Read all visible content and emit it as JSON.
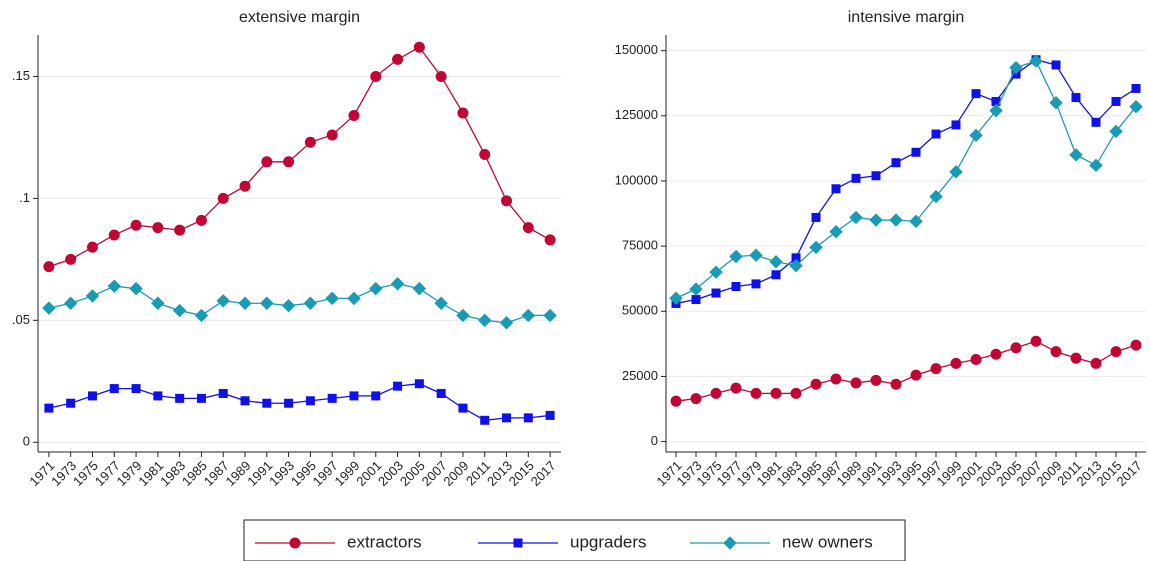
{
  "chart_data": [
    {
      "type": "line",
      "title": "extensive margin",
      "x": [
        1971,
        1973,
        1975,
        1977,
        1979,
        1981,
        1983,
        1985,
        1987,
        1989,
        1991,
        1993,
        1995,
        1997,
        1999,
        2001,
        2003,
        2005,
        2007,
        2009,
        2011,
        2013,
        2015,
        2017
      ],
      "xlim": [
        1970,
        2018
      ],
      "xticks": [
        1971,
        1973,
        1975,
        1977,
        1979,
        1981,
        1983,
        1985,
        1987,
        1989,
        1991,
        1993,
        1995,
        1997,
        1999,
        2001,
        2003,
        2005,
        2007,
        2009,
        2011,
        2013,
        2015,
        2017
      ],
      "ylim": [
        -0.004,
        0.167
      ],
      "yticks": [
        0,
        {
          "value": 0.05,
          "label": ".05"
        },
        {
          "value": 0.1,
          "label": ".1"
        },
        {
          "value": 0.15,
          "label": ".15"
        }
      ],
      "grid": true,
      "series": [
        {
          "color": "#c10534",
          "marker": "circle",
          "values": [
            0.072,
            0.075,
            0.08,
            0.085,
            0.089,
            0.088,
            0.087,
            0.091,
            0.1,
            0.105,
            0.115,
            0.115,
            0.123,
            0.126,
            0.134,
            0.15,
            0.157,
            0.162,
            0.15,
            0.135,
            0.118,
            0.099,
            0.088,
            0.083
          ]
        },
        {
          "color": "#1010e8",
          "marker": "square",
          "values": [
            0.014,
            0.016,
            0.019,
            0.022,
            0.022,
            0.019,
            0.018,
            0.018,
            0.02,
            0.017,
            0.016,
            0.016,
            0.017,
            0.018,
            0.019,
            0.019,
            0.023,
            0.024,
            0.02,
            0.014,
            0.009,
            0.01,
            0.01,
            0.011
          ]
        },
        {
          "color": "#1a9bb5",
          "marker": "diamond",
          "values": [
            0.055,
            0.057,
            0.06,
            0.064,
            0.063,
            0.057,
            0.054,
            0.052,
            0.058,
            0.057,
            0.057,
            0.056,
            0.057,
            0.059,
            0.059,
            0.063,
            0.065,
            0.063,
            0.057,
            0.052,
            0.05,
            0.049,
            0.052,
            0.052
          ]
        }
      ]
    },
    {
      "type": "line",
      "title": "intensive margin",
      "x": [
        1971,
        1973,
        1975,
        1977,
        1979,
        1981,
        1983,
        1985,
        1987,
        1989,
        1991,
        1993,
        1995,
        1997,
        1999,
        2001,
        2003,
        2005,
        2007,
        2009,
        2011,
        2013,
        2015,
        2017
      ],
      "xlim": [
        1970,
        2018
      ],
      "xticks": [
        1971,
        1973,
        1975,
        1977,
        1979,
        1981,
        1983,
        1985,
        1987,
        1989,
        1991,
        1993,
        1995,
        1997,
        1999,
        2001,
        2003,
        2005,
        2007,
        2009,
        2011,
        2013,
        2015,
        2017
      ],
      "ylim": [
        -4000,
        156000
      ],
      "yticks": [
        0,
        25000,
        50000,
        75000,
        100000,
        125000,
        150000
      ],
      "grid": true,
      "series": [
        {
          "color": "#c10534",
          "marker": "circle",
          "values": [
            15500,
            16500,
            18500,
            20500,
            18500,
            18500,
            18500,
            22000,
            24000,
            22500,
            23500,
            22000,
            25500,
            28000,
            30000,
            31500,
            33500,
            36000,
            38500,
            34500,
            32000,
            30000,
            34500,
            37000
          ]
        },
        {
          "color": "#1010e8",
          "marker": "square",
          "values": [
            53000,
            54500,
            57000,
            59500,
            60500,
            64000,
            70500,
            86000,
            97000,
            101000,
            102000,
            107000,
            111000,
            118000,
            121500,
            133500,
            130500,
            141000,
            146500,
            144500,
            132000,
            122500,
            130500,
            135500
          ]
        },
        {
          "color": "#1a9bb5",
          "marker": "diamond",
          "values": [
            55000,
            58500,
            65000,
            71000,
            71500,
            69000,
            67500,
            74500,
            80500,
            86000,
            85000,
            85000,
            84500,
            94000,
            103500,
            117500,
            127000,
            143500,
            146000,
            130000,
            110000,
            106000,
            119000,
            128500
          ]
        }
      ]
    }
  ],
  "legend": {
    "position": "bottom",
    "items": [
      "extractors",
      "upgraders",
      "new owners"
    ]
  }
}
